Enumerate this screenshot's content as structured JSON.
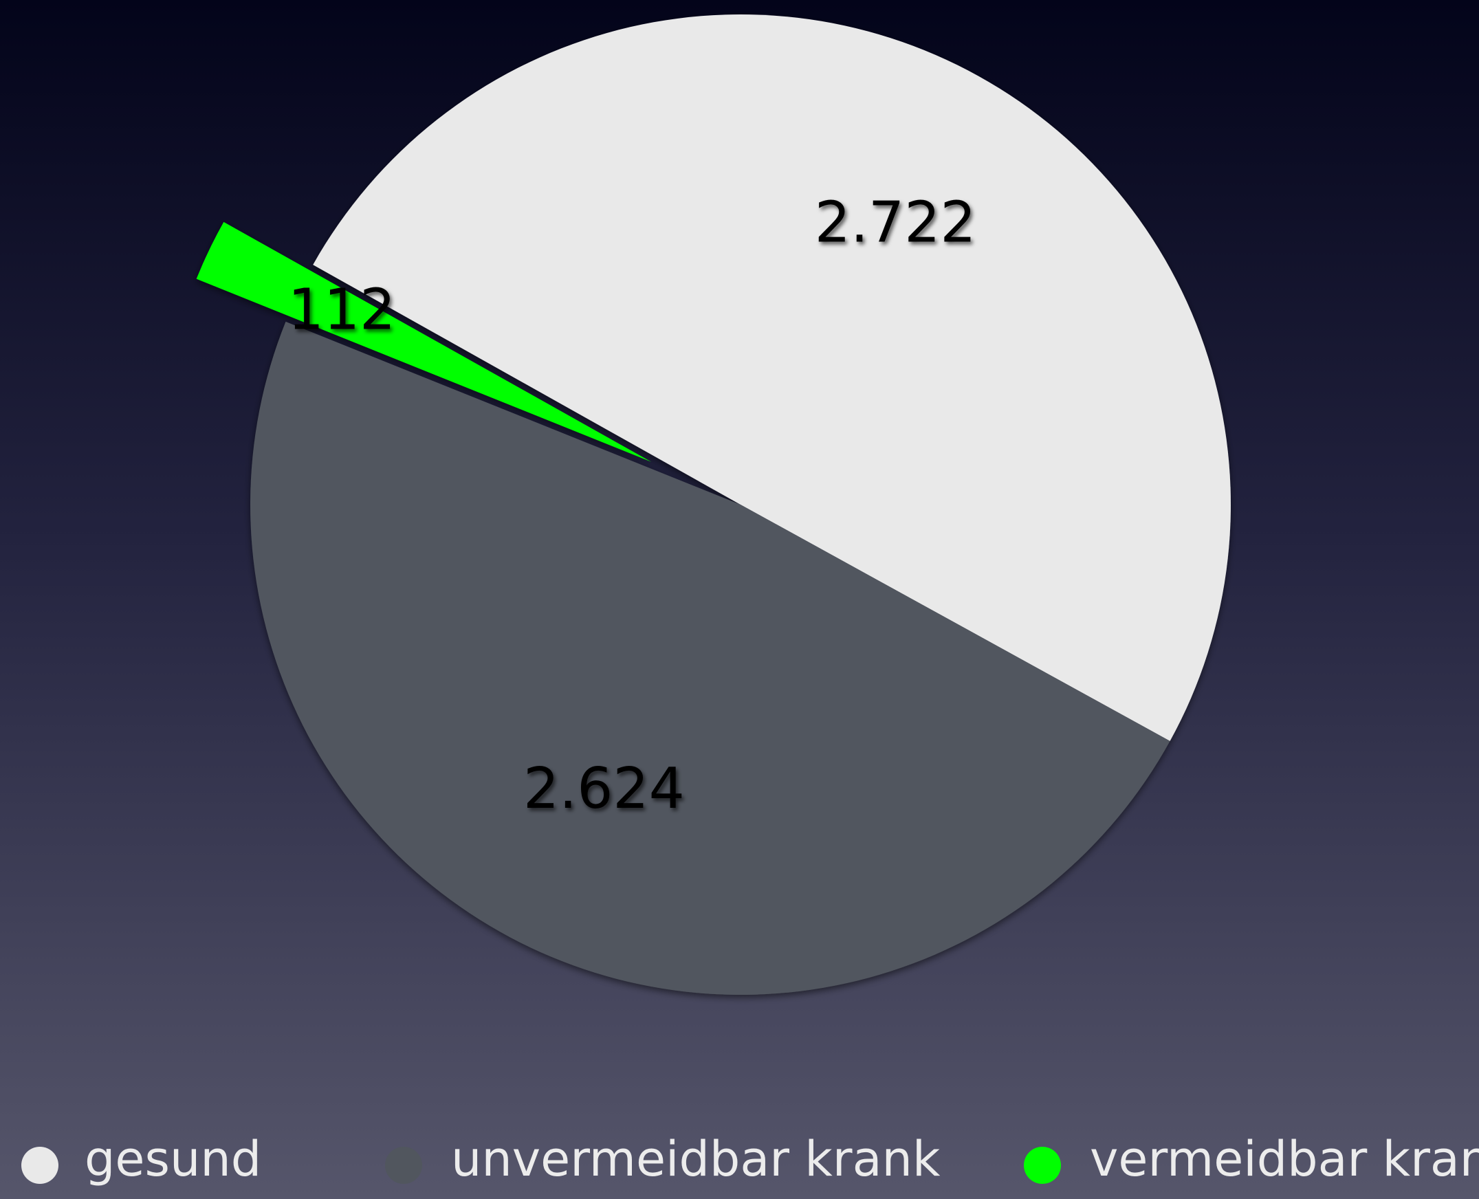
{
  "chart_data": {
    "type": "pie",
    "categories": [
      "gesund",
      "unvermeidbar krank",
      "vermeidbar krank"
    ],
    "values": [
      2722,
      2624,
      112
    ],
    "value_labels": [
      "2.722",
      "2.624",
      "112"
    ],
    "colors": [
      "#e9e9e9",
      "#51565e",
      "#00ff00"
    ],
    "explode": [
      false,
      false,
      true
    ],
    "legend": "bottom"
  }
}
